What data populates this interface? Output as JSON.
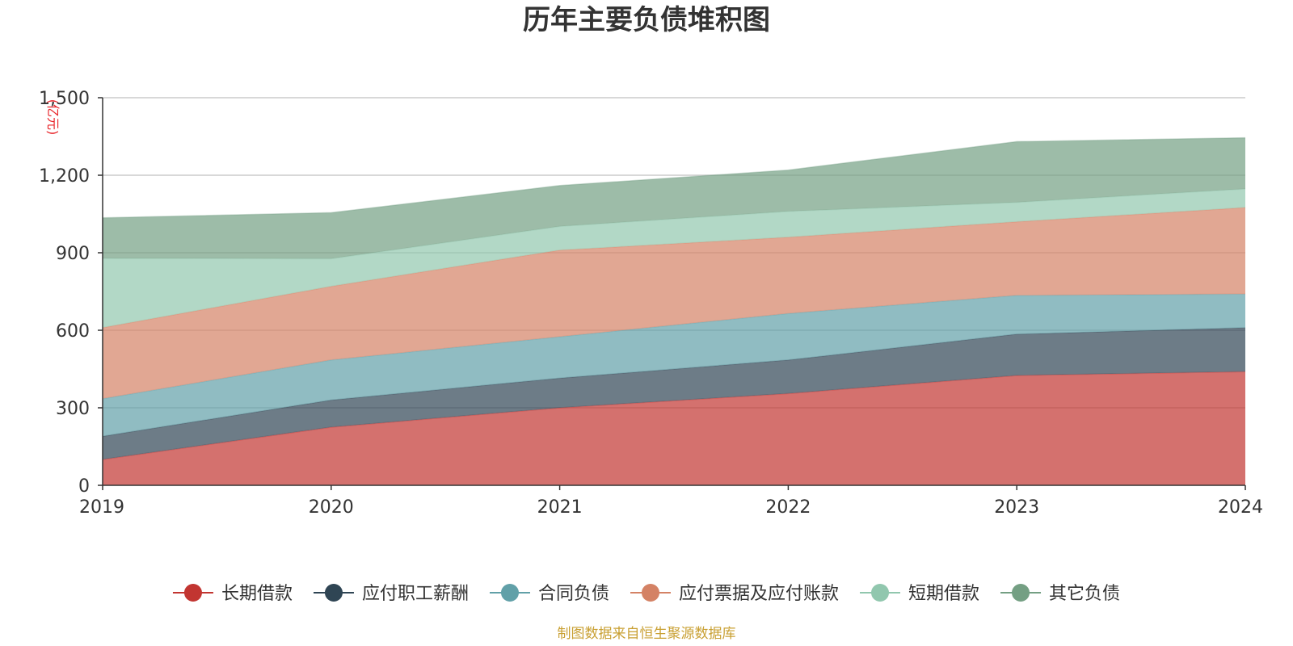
{
  "chart_data": {
    "type": "area",
    "stacked": true,
    "title": "历年主要负债堆积图",
    "unit_label": "(亿元)",
    "x": [
      "2019",
      "2020",
      "2021",
      "2022",
      "2023",
      "2024"
    ],
    "ylim": [
      0,
      1500
    ],
    "yticks": [
      "0",
      "300",
      "600",
      "900",
      "1,200",
      "1,500"
    ],
    "grid": true,
    "legend_position": "bottom",
    "series": [
      {
        "name": "长期借款",
        "color": "#c23531",
        "values": [
          100,
          225,
          300,
          355,
          425,
          440
        ]
      },
      {
        "name": "应付职工薪酬",
        "color": "#2f4554",
        "values": [
          90,
          105,
          115,
          130,
          160,
          170
        ]
      },
      {
        "name": "合同负债",
        "color": "#61a0a8",
        "values": [
          145,
          155,
          160,
          180,
          150,
          130
        ]
      },
      {
        "name": "应付票据及应付账款",
        "color": "#d48265",
        "values": [
          275,
          285,
          335,
          295,
          285,
          335
        ]
      },
      {
        "name": "短期借款",
        "color": "#91c7ae",
        "values": [
          268,
          107,
          92,
          100,
          75,
          72
        ]
      },
      {
        "name": "其它负债",
        "color": "#749f83",
        "values": [
          157,
          178,
          158,
          160,
          235,
          198
        ]
      }
    ]
  },
  "footer": {
    "source": "制图数据来自恒生聚源数据库"
  }
}
